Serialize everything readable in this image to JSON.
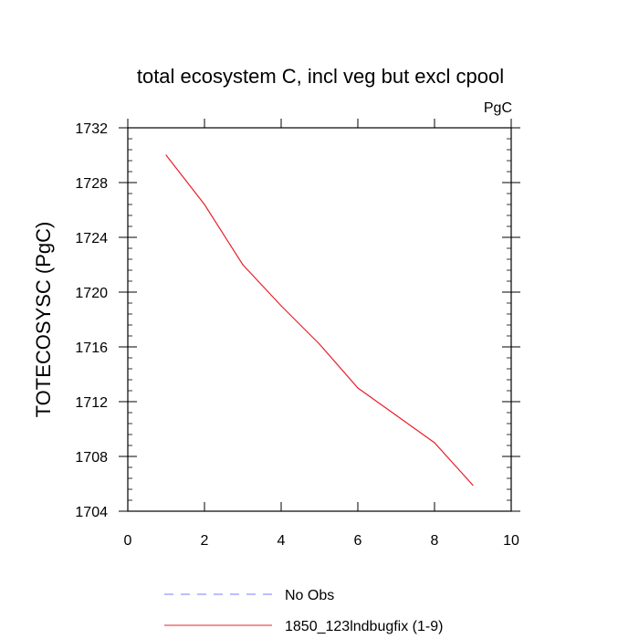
{
  "chart_data": {
    "type": "line",
    "title": "total ecosystem C, incl veg but excl cpool",
    "units": "PgC",
    "xlabel": "",
    "ylabel": "TOTECOSYSC  (PgC)",
    "xlim": [
      0,
      10
    ],
    "ylim": [
      1704,
      1732
    ],
    "x_ticks": [
      0,
      2,
      4,
      6,
      8,
      10
    ],
    "y_ticks": [
      1704,
      1708,
      1712,
      1716,
      1720,
      1724,
      1728,
      1732
    ],
    "grid": false,
    "legend_position": "bottom",
    "series": [
      {
        "name": "No Obs",
        "color": "#7b7bff",
        "style": "dashed",
        "x": [],
        "values": []
      },
      {
        "name": "1850_123lndbugfix (1-9)",
        "color": "#e8202a",
        "style": "solid",
        "x": [
          1,
          2,
          3,
          4,
          5,
          6,
          7,
          8,
          9
        ],
        "values": [
          1730.0,
          1726.4,
          1722.0,
          1719.0,
          1716.2,
          1713.0,
          1711.0,
          1709.0,
          1705.9
        ]
      }
    ]
  }
}
